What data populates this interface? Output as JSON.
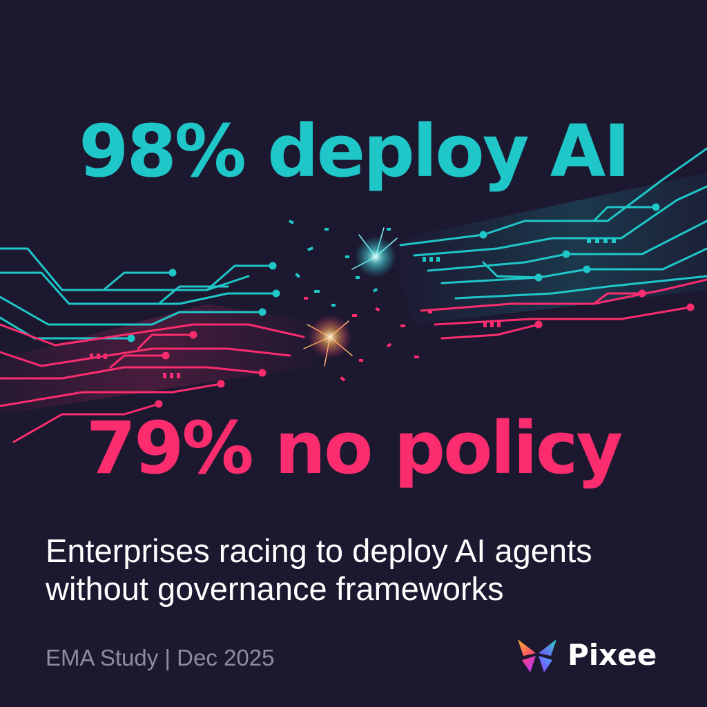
{
  "headline_top": "98% deploy AI",
  "headline_bottom": "79% no policy",
  "subtitle": {
    "line1": "Enterprises racing to deploy AI agents",
    "line2": "without governance frameworks"
  },
  "source": "EMA Study | Dec 2025",
  "brand": {
    "name": "Pixee",
    "logo_icon": "butterfly-logo-icon"
  },
  "colors": {
    "background": "#1c1830",
    "cyan": "#1fc7c9",
    "pink": "#fb2d6e",
    "text": "#ffffff",
    "muted": "#8f8c9d"
  },
  "illustration": {
    "name": "broken-circuit-board-illustration",
    "strands": [
      "cyan",
      "pink"
    ]
  }
}
